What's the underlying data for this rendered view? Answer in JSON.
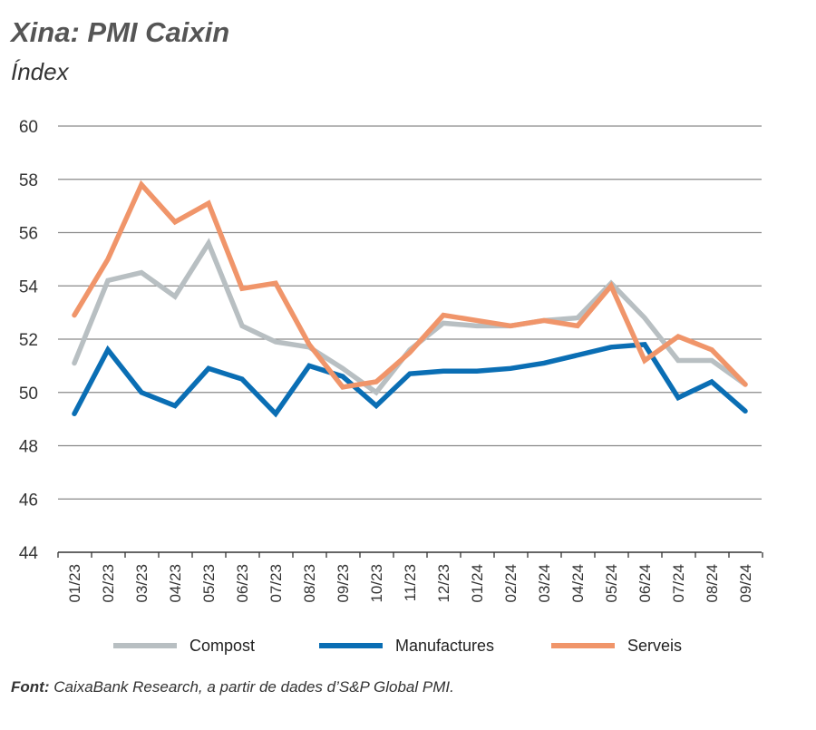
{
  "chart_data": {
    "type": "line",
    "title": "Xina: PMI Caixin",
    "subtitle": "Índex",
    "ylim": [
      44,
      60
    ],
    "yticks": [
      44,
      46,
      48,
      50,
      52,
      54,
      56,
      58,
      60
    ],
    "grid": true,
    "legend_placement": "bottom",
    "categories": [
      "01/23",
      "02/23",
      "03/23",
      "04/23",
      "05/23",
      "06/23",
      "07/23",
      "08/23",
      "09/23",
      "10/23",
      "11/23",
      "12/23",
      "01/24",
      "02/24",
      "03/24",
      "04/24",
      "05/24",
      "06/24",
      "07/24",
      "08/24",
      "09/24"
    ],
    "series": [
      {
        "name": "Compost",
        "color": "#b8bfc2",
        "values": [
          51.1,
          54.2,
          54.5,
          53.6,
          55.6,
          52.5,
          51.9,
          51.7,
          50.9,
          50.0,
          51.6,
          52.6,
          52.5,
          52.5,
          52.7,
          52.8,
          54.1,
          52.8,
          51.2,
          51.2,
          50.3
        ]
      },
      {
        "name": "Manufactures",
        "color": "#0a6eb4",
        "values": [
          49.2,
          51.6,
          50.0,
          49.5,
          50.9,
          50.5,
          49.2,
          51.0,
          50.6,
          49.5,
          50.7,
          50.8,
          50.8,
          50.9,
          51.1,
          51.4,
          51.7,
          51.8,
          49.8,
          50.4,
          49.3
        ]
      },
      {
        "name": "Serveis",
        "color": "#f0956a",
        "values": [
          52.9,
          55.0,
          57.8,
          56.4,
          57.1,
          53.9,
          54.1,
          51.8,
          50.2,
          50.4,
          51.5,
          52.9,
          52.7,
          52.5,
          52.7,
          52.5,
          54.0,
          51.2,
          52.1,
          51.6,
          50.3
        ]
      }
    ]
  },
  "source": {
    "label": "Font:",
    "text": " CaixaBank Research, a partir de dades d’S&P Global PMI."
  }
}
